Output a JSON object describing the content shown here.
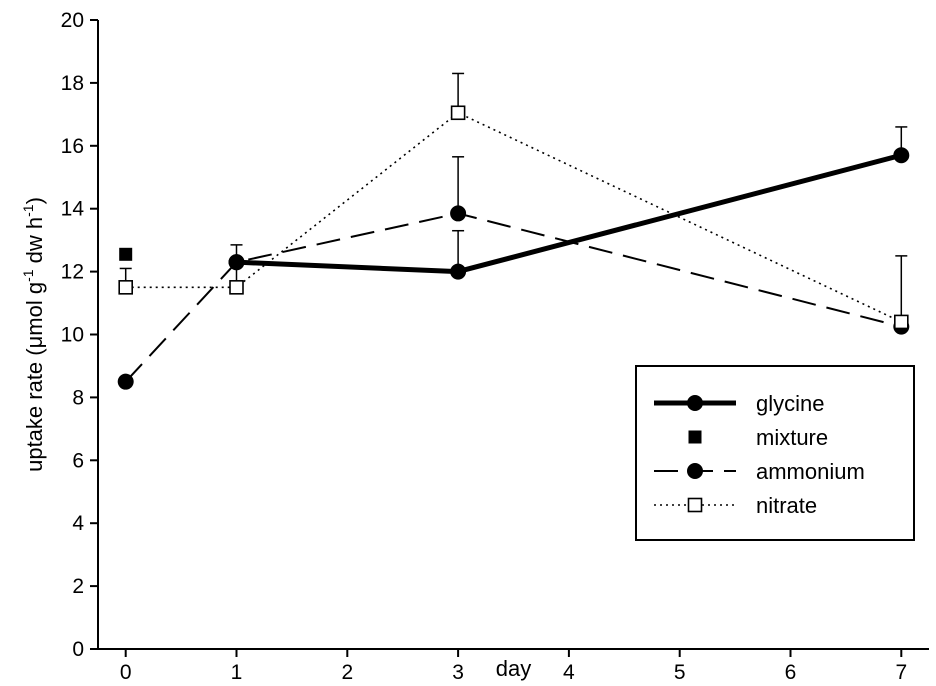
{
  "chart_data": {
    "type": "line",
    "title": "",
    "xlabel": "day",
    "ylabel": {
      "prefix": "uptake rate (",
      "mu": "μ",
      "mol": "mol g",
      "sup1": "-1",
      "dw": " dw h",
      "sup2": "-1",
      "suffix": ")"
    },
    "xlim": [
      -0.25,
      7.25
    ],
    "ylim": [
      0,
      20
    ],
    "xticks": [
      0,
      1,
      2,
      3,
      4,
      5,
      6,
      7
    ],
    "yticks": [
      0,
      2,
      4,
      6,
      8,
      10,
      12,
      14,
      16,
      18,
      20
    ],
    "legend_position": "lower-right",
    "series": [
      {
        "name": "glycine",
        "style": "thick-solid",
        "marker": "filled-circle",
        "color": "#000000",
        "points": [
          {
            "x": 1,
            "y": 12.3,
            "err": 0.55
          },
          {
            "x": 3,
            "y": 12.0,
            "err": 1.3
          },
          {
            "x": 7,
            "y": 15.7,
            "err": 0.9
          }
        ]
      },
      {
        "name": "mixture",
        "style": "none",
        "marker": "filled-square",
        "color": "#000000",
        "points": [
          {
            "x": 0,
            "y": 12.55,
            "err": 0
          }
        ]
      },
      {
        "name": "ammonium",
        "style": "dashed",
        "marker": "filled-circle",
        "color": "#000000",
        "points": [
          {
            "x": 0,
            "y": 8.5,
            "err": 0
          },
          {
            "x": 1,
            "y": 12.3,
            "err": 0
          },
          {
            "x": 3,
            "y": 13.85,
            "err": 1.8
          },
          {
            "x": 7,
            "y": 10.25,
            "err": 0
          }
        ]
      },
      {
        "name": "nitrate",
        "style": "dotted",
        "marker": "open-square",
        "color": "#000000",
        "points": [
          {
            "x": 0,
            "y": 11.5,
            "err": 0.6
          },
          {
            "x": 1,
            "y": 11.5,
            "err": 0.75
          },
          {
            "x": 3,
            "y": 17.05,
            "err": 1.25
          },
          {
            "x": 7,
            "y": 10.4,
            "err": 2.1
          }
        ]
      }
    ]
  }
}
